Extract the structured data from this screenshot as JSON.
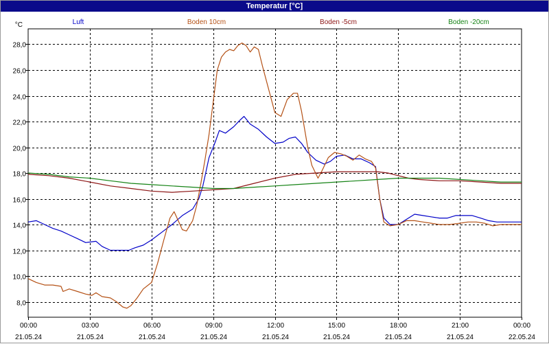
{
  "window": {
    "title": "Temperatur [°C]"
  },
  "chart_data": {
    "type": "line",
    "title": "Temperatur [°C]",
    "ylabel": "°C",
    "xlabel": "",
    "ylim": [
      6.8,
      29.2
    ],
    "y_ticks": [
      8.0,
      10.0,
      12.0,
      14.0,
      16.0,
      18.0,
      20.0,
      22.0,
      24.0,
      26.0,
      28.0
    ],
    "y_tick_labels": [
      "8,0",
      "10,0",
      "12,0",
      "14,0",
      "16,0",
      "18,0",
      "20,0",
      "22,0",
      "24,0",
      "26,0",
      "28,0"
    ],
    "x_range_hours": [
      0,
      24
    ],
    "x_tick_hours": [
      0,
      3,
      6,
      9,
      12,
      15,
      18,
      21,
      24
    ],
    "x_ticks": [
      {
        "time": "00:00",
        "date": "21.05.24"
      },
      {
        "time": "03:00",
        "date": "21.05.24"
      },
      {
        "time": "06:00",
        "date": "21.05.24"
      },
      {
        "time": "09:00",
        "date": "21.05.24"
      },
      {
        "time": "12:00",
        "date": "21.05.24"
      },
      {
        "time": "15:00",
        "date": "21.05.24"
      },
      {
        "time": "18:00",
        "date": "21.05.24"
      },
      {
        "time": "21:00",
        "date": "21.05.24"
      },
      {
        "time": "00:00",
        "date": "22.05.24"
      }
    ],
    "grid": true,
    "legend_position": "top",
    "series": [
      {
        "name": "Luft",
        "color": "#0000c8",
        "points": [
          [
            0,
            14.2
          ],
          [
            0.4,
            14.3
          ],
          [
            0.8,
            14.0
          ],
          [
            1.2,
            13.7
          ],
          [
            1.6,
            13.5
          ],
          [
            2.0,
            13.2
          ],
          [
            2.4,
            12.9
          ],
          [
            2.8,
            12.6
          ],
          [
            3.3,
            12.7
          ],
          [
            3.6,
            12.3
          ],
          [
            4.0,
            12.0
          ],
          [
            4.5,
            12.0
          ],
          [
            4.9,
            12.0
          ],
          [
            5.2,
            12.2
          ],
          [
            5.6,
            12.4
          ],
          [
            6.0,
            12.8
          ],
          [
            6.5,
            13.4
          ],
          [
            7.0,
            14.0
          ],
          [
            7.5,
            14.7
          ],
          [
            8.0,
            15.2
          ],
          [
            8.3,
            16.0
          ],
          [
            8.5,
            17.0
          ],
          [
            8.8,
            19.2
          ],
          [
            9.1,
            20.4
          ],
          [
            9.3,
            21.3
          ],
          [
            9.6,
            21.1
          ],
          [
            10.0,
            21.6
          ],
          [
            10.3,
            22.1
          ],
          [
            10.5,
            22.4
          ],
          [
            10.8,
            21.8
          ],
          [
            11.2,
            21.4
          ],
          [
            11.6,
            20.8
          ],
          [
            12.0,
            20.3
          ],
          [
            12.4,
            20.4
          ],
          [
            12.7,
            20.7
          ],
          [
            13.0,
            20.8
          ],
          [
            13.3,
            20.3
          ],
          [
            13.6,
            19.6
          ],
          [
            14.0,
            19.0
          ],
          [
            14.4,
            18.7
          ],
          [
            14.7,
            18.9
          ],
          [
            15.0,
            19.3
          ],
          [
            15.4,
            19.4
          ],
          [
            15.8,
            19.1
          ],
          [
            16.2,
            19.1
          ],
          [
            16.6,
            18.8
          ],
          [
            16.9,
            18.5
          ],
          [
            17.1,
            16.0
          ],
          [
            17.3,
            14.5
          ],
          [
            17.6,
            14.0
          ],
          [
            18.0,
            14.0
          ],
          [
            18.4,
            14.4
          ],
          [
            18.8,
            14.8
          ],
          [
            19.2,
            14.7
          ],
          [
            19.6,
            14.6
          ],
          [
            20.0,
            14.5
          ],
          [
            20.4,
            14.5
          ],
          [
            20.8,
            14.7
          ],
          [
            21.2,
            14.7
          ],
          [
            21.6,
            14.7
          ],
          [
            22.0,
            14.5
          ],
          [
            22.4,
            14.3
          ],
          [
            22.8,
            14.2
          ],
          [
            23.2,
            14.2
          ],
          [
            24.0,
            14.2
          ]
        ]
      },
      {
        "name": "Boden 10cm",
        "color": "#b45014",
        "points": [
          [
            0,
            9.8
          ],
          [
            0.4,
            9.5
          ],
          [
            0.8,
            9.3
          ],
          [
            1.2,
            9.3
          ],
          [
            1.6,
            9.2
          ],
          [
            1.7,
            8.8
          ],
          [
            2.0,
            9.0
          ],
          [
            2.4,
            8.8
          ],
          [
            2.8,
            8.6
          ],
          [
            3.1,
            8.5
          ],
          [
            3.3,
            8.7
          ],
          [
            3.6,
            8.4
          ],
          [
            4.0,
            8.3
          ],
          [
            4.3,
            8.0
          ],
          [
            4.6,
            7.6
          ],
          [
            4.8,
            7.5
          ],
          [
            5.0,
            7.7
          ],
          [
            5.3,
            8.3
          ],
          [
            5.6,
            9.0
          ],
          [
            6.0,
            9.5
          ],
          [
            6.3,
            11.0
          ],
          [
            6.6,
            12.8
          ],
          [
            6.9,
            14.5
          ],
          [
            7.1,
            15.0
          ],
          [
            7.3,
            14.3
          ],
          [
            7.5,
            13.6
          ],
          [
            7.7,
            13.5
          ],
          [
            8.0,
            14.3
          ],
          [
            8.2,
            15.5
          ],
          [
            8.4,
            17.2
          ],
          [
            8.6,
            19.0
          ],
          [
            8.8,
            21.0
          ],
          [
            9.0,
            23.5
          ],
          [
            9.2,
            26.0
          ],
          [
            9.4,
            27.0
          ],
          [
            9.6,
            27.4
          ],
          [
            9.8,
            27.6
          ],
          [
            10.0,
            27.5
          ],
          [
            10.2,
            27.9
          ],
          [
            10.4,
            28.1
          ],
          [
            10.6,
            27.9
          ],
          [
            10.8,
            27.4
          ],
          [
            11.0,
            27.8
          ],
          [
            11.2,
            27.6
          ],
          [
            11.4,
            26.3
          ],
          [
            11.7,
            24.5
          ],
          [
            12.0,
            22.7
          ],
          [
            12.3,
            22.4
          ],
          [
            12.6,
            23.7
          ],
          [
            12.9,
            24.2
          ],
          [
            13.1,
            24.2
          ],
          [
            13.3,
            22.8
          ],
          [
            13.6,
            20.0
          ],
          [
            13.8,
            18.6
          ],
          [
            14.1,
            17.6
          ],
          [
            14.3,
            18.2
          ],
          [
            14.6,
            19.2
          ],
          [
            14.9,
            19.6
          ],
          [
            15.2,
            19.5
          ],
          [
            15.5,
            19.3
          ],
          [
            15.8,
            19.0
          ],
          [
            16.1,
            19.4
          ],
          [
            16.4,
            19.1
          ],
          [
            16.7,
            18.9
          ],
          [
            16.9,
            18.4
          ],
          [
            17.1,
            16.0
          ],
          [
            17.3,
            14.2
          ],
          [
            17.6,
            13.9
          ],
          [
            18.0,
            14.0
          ],
          [
            18.4,
            14.3
          ],
          [
            18.8,
            14.3
          ],
          [
            19.2,
            14.2
          ],
          [
            19.6,
            14.1
          ],
          [
            20.0,
            14.0
          ],
          [
            20.5,
            14.0
          ],
          [
            21.0,
            14.1
          ],
          [
            21.4,
            14.2
          ],
          [
            21.8,
            14.2
          ],
          [
            22.2,
            14.1
          ],
          [
            22.6,
            13.9
          ],
          [
            23.0,
            14.0
          ],
          [
            23.5,
            14.0
          ],
          [
            24.0,
            14.0
          ]
        ]
      },
      {
        "name": "Boden -5cm",
        "color": "#8c1414",
        "points": [
          [
            0,
            17.9
          ],
          [
            1.0,
            17.8
          ],
          [
            2.0,
            17.6
          ],
          [
            3.0,
            17.3
          ],
          [
            4.0,
            17.0
          ],
          [
            5.0,
            16.8
          ],
          [
            6.0,
            16.6
          ],
          [
            7.0,
            16.5
          ],
          [
            8.0,
            16.6
          ],
          [
            9.0,
            16.7
          ],
          [
            10.0,
            16.8
          ],
          [
            11.0,
            17.2
          ],
          [
            12.0,
            17.6
          ],
          [
            13.0,
            17.9
          ],
          [
            14.0,
            18.0
          ],
          [
            15.0,
            18.1
          ],
          [
            16.0,
            18.1
          ],
          [
            17.0,
            18.1
          ],
          [
            17.5,
            18.0
          ],
          [
            18.0,
            17.8
          ],
          [
            18.5,
            17.6
          ],
          [
            19.0,
            17.5
          ],
          [
            20.0,
            17.4
          ],
          [
            21.0,
            17.4
          ],
          [
            22.0,
            17.3
          ],
          [
            23.0,
            17.2
          ],
          [
            24.0,
            17.2
          ]
        ]
      },
      {
        "name": "Boden -20cm",
        "color": "#148214",
        "points": [
          [
            0,
            18.0
          ],
          [
            1.0,
            17.9
          ],
          [
            2.0,
            17.7
          ],
          [
            3.0,
            17.6
          ],
          [
            4.0,
            17.4
          ],
          [
            5.0,
            17.2
          ],
          [
            6.0,
            17.1
          ],
          [
            7.0,
            17.0
          ],
          [
            8.0,
            16.9
          ],
          [
            9.0,
            16.8
          ],
          [
            10.0,
            16.8
          ],
          [
            11.0,
            16.9
          ],
          [
            12.0,
            17.0
          ],
          [
            13.0,
            17.1
          ],
          [
            14.0,
            17.2
          ],
          [
            15.0,
            17.3
          ],
          [
            16.0,
            17.4
          ],
          [
            17.0,
            17.5
          ],
          [
            18.0,
            17.6
          ],
          [
            19.0,
            17.6
          ],
          [
            20.0,
            17.6
          ],
          [
            21.0,
            17.5
          ],
          [
            22.0,
            17.4
          ],
          [
            23.0,
            17.3
          ],
          [
            24.0,
            17.3
          ]
        ]
      }
    ]
  }
}
